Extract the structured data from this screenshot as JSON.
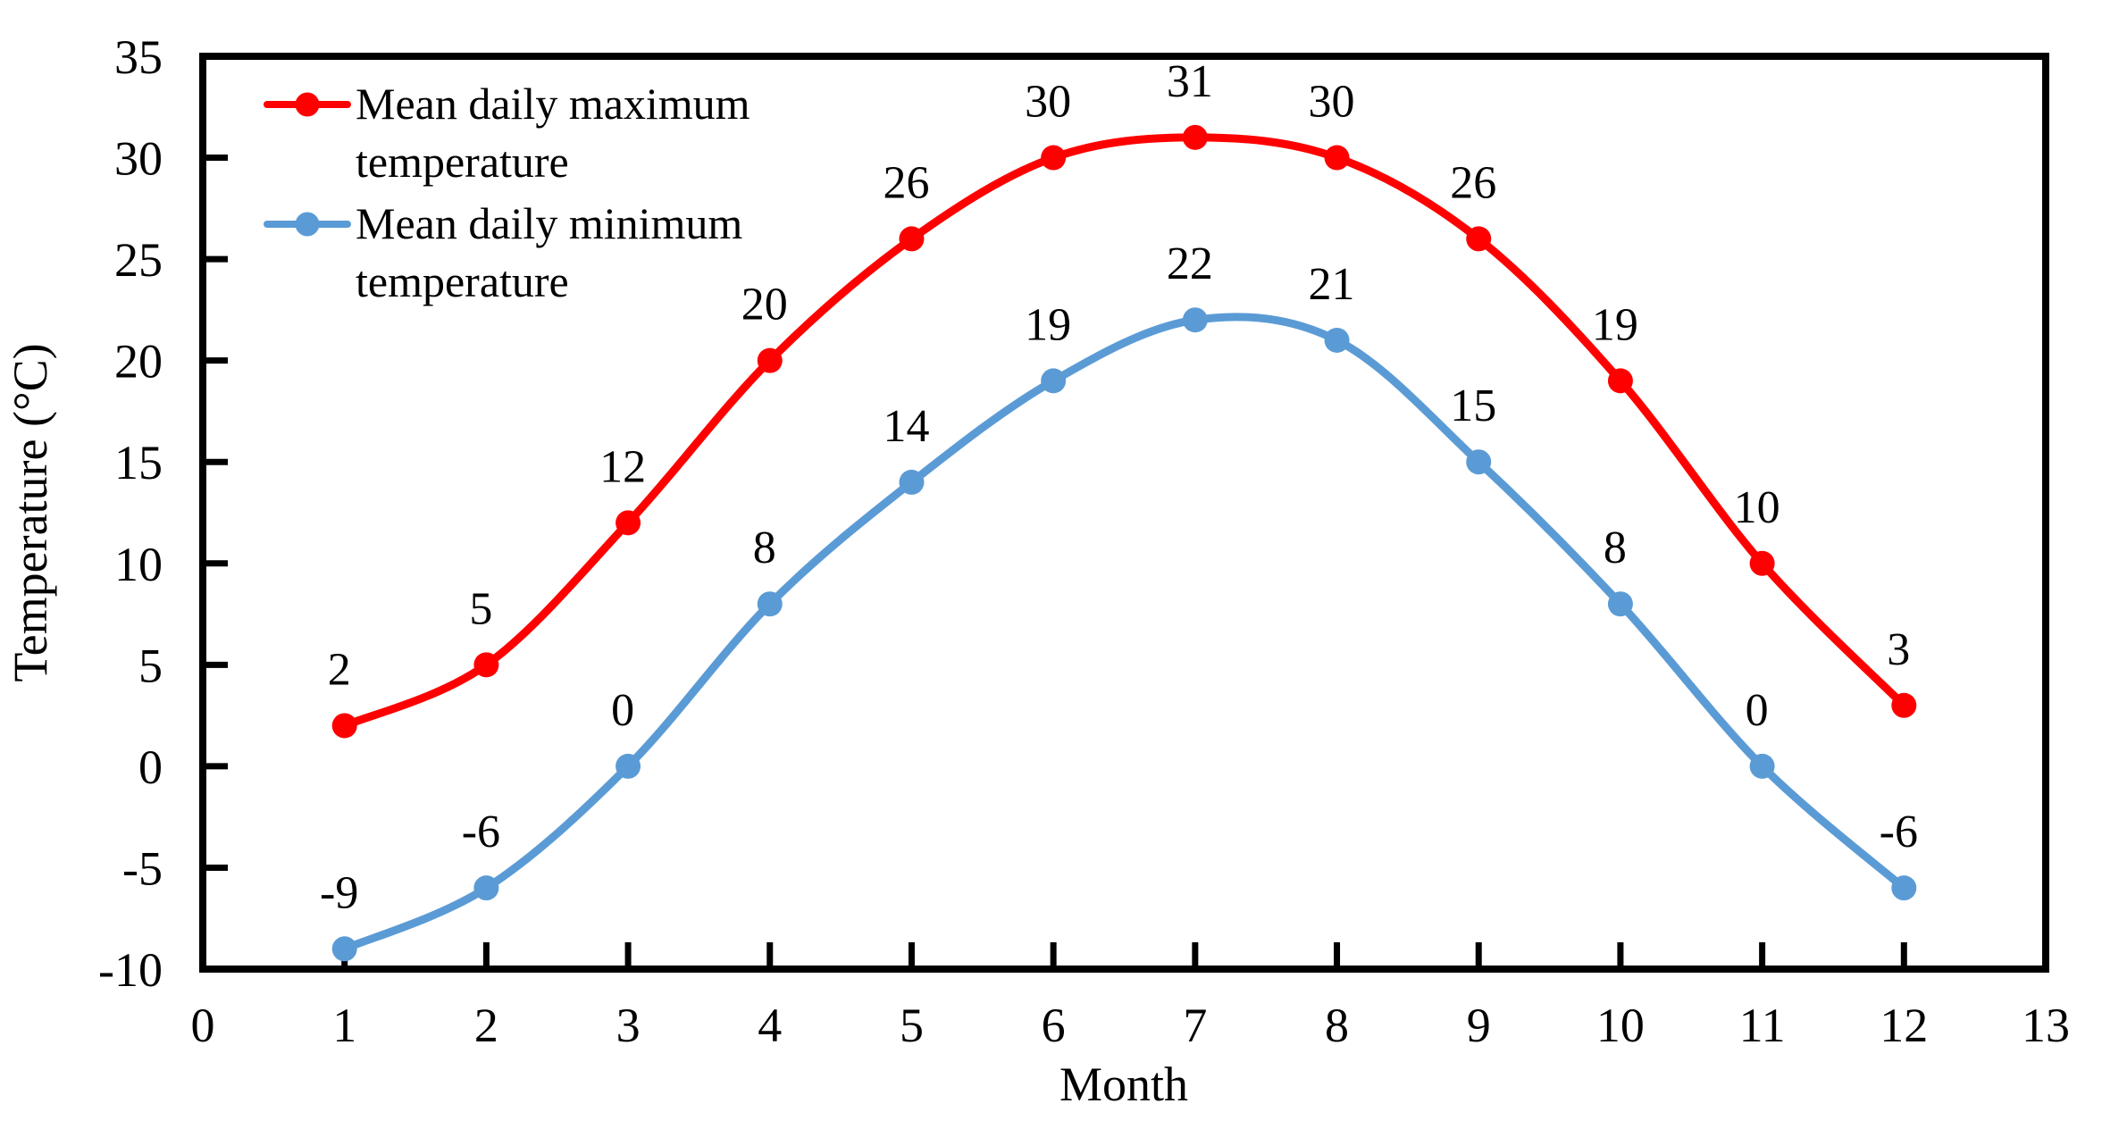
{
  "chart_data": {
    "type": "line",
    "title": "",
    "x": [
      1,
      2,
      3,
      4,
      5,
      6,
      7,
      8,
      9,
      10,
      11,
      12
    ],
    "series": [
      {
        "name": "Mean daily maximum temperature",
        "color": "#FF0000",
        "values": [
          2,
          5,
          12,
          20,
          26,
          30,
          31,
          30,
          26,
          19,
          10,
          3
        ]
      },
      {
        "name": "Mean daily minimum temperature",
        "color": "#5B9BD5",
        "values": [
          -9,
          -6,
          0,
          8,
          14,
          19,
          22,
          21,
          15,
          8,
          0,
          -6
        ]
      }
    ],
    "xlabel": "Month",
    "ylabel": "Temperature (°C)",
    "xlim": [
      0,
      13
    ],
    "ylim": [
      -10,
      35
    ],
    "x_ticks": [
      0,
      1,
      2,
      3,
      4,
      5,
      6,
      7,
      8,
      9,
      10,
      11,
      12,
      13
    ],
    "y_ticks": [
      -10,
      -5,
      0,
      5,
      10,
      15,
      20,
      25,
      30,
      35
    ],
    "grid": false,
    "legend_position": "top-left-inside",
    "smoothed": true,
    "data_labels": true,
    "axis_color": "#000000",
    "background": "#FFFFFF",
    "text_color": "#000000"
  }
}
